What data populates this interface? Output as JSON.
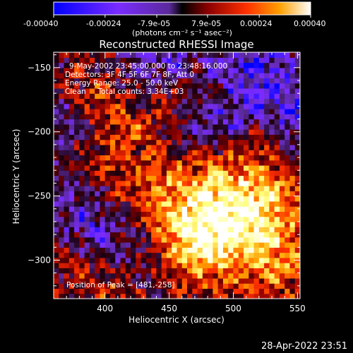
{
  "colorbar": {
    "tick_labels": [
      "-0.00040",
      "-0.00024",
      "-7.9e-05",
      "7.9e-05",
      "0.00024",
      "0.00040"
    ],
    "unit_label": "(photons cm⁻² s⁻¹ asec⁻²)",
    "range": [
      -0.0004,
      0.0004
    ]
  },
  "annotations": {
    "time_range": "9-May-2002 23:45:00.000 to 23:48:16.000",
    "detectors": "Detectors: 3F 4F 5F 6F 7F 8F, Att 0",
    "energy_range": "Energy Range: 25.0 - 50.0 keV",
    "clean_counts": "Clean     Total counts: 3.34E+03",
    "peak_position": "Position of Peak = [481,-258]"
  },
  "footer": {
    "timestamp": "28-Apr-2022 23:51"
  },
  "chart_data": {
    "type": "heatmap",
    "title": "Reconstructed RHESSI Image",
    "xlabel": "Heliocentric X (arcsec)",
    "ylabel": "Heliocentric Y (arcsec)",
    "xlim": [
      360,
      552
    ],
    "ylim": [
      -330,
      -138
    ],
    "x_ticks": [
      400,
      450,
      500,
      550
    ],
    "y_ticks": [
      -150,
      -200,
      -250,
      -300
    ],
    "x_tick_labels": [
      "400",
      "450",
      "500",
      "550"
    ],
    "y_tick_labels": [
      "-150",
      "-200",
      "-250",
      "-300"
    ],
    "peak": [
      481,
      -258
    ],
    "colormap": [
      "#0000ff",
      "#7a2cff",
      "#5b2a9a",
      "#1a0010",
      "#8b0000",
      "#ff3000",
      "#ffa000",
      "#ffff80",
      "#ffffff"
    ],
    "grid": false,
    "features": [
      {
        "x": 481,
        "y": -258,
        "amp": 1.0,
        "sigma": 30
      },
      {
        "x": 500,
        "y": -280,
        "amp": 0.8,
        "sigma": 28
      },
      {
        "x": 530,
        "y": -250,
        "amp": 0.7,
        "sigma": 25
      },
      {
        "x": 460,
        "y": -290,
        "amp": 0.6,
        "sigma": 22
      },
      {
        "x": 395,
        "y": -230,
        "amp": 0.55,
        "sigma": 20
      },
      {
        "x": 420,
        "y": -200,
        "amp": 0.45,
        "sigma": 15
      },
      {
        "x": 390,
        "y": -170,
        "amp": 0.45,
        "sigma": 15
      },
      {
        "x": 450,
        "y": -170,
        "amp": 0.4,
        "sigma": 14
      },
      {
        "x": 520,
        "y": -200,
        "amp": 0.35,
        "sigma": 14
      },
      {
        "x": 380,
        "y": -300,
        "amp": 0.3,
        "sigma": 14
      },
      {
        "x": 410,
        "y": -320,
        "amp": 0.45,
        "sigma": 16
      },
      {
        "x": 440,
        "y": -240,
        "amp": 0.4,
        "sigma": 14
      },
      {
        "x": 540,
        "y": -300,
        "amp": 0.55,
        "sigma": 18
      },
      {
        "x": 445,
        "y": -145,
        "amp": -0.7,
        "sigma": 20
      },
      {
        "x": 515,
        "y": -150,
        "amp": -0.8,
        "sigma": 24
      },
      {
        "x": 545,
        "y": -190,
        "amp": -0.75,
        "sigma": 22
      },
      {
        "x": 375,
        "y": -245,
        "amp": -0.6,
        "sigma": 22
      },
      {
        "x": 430,
        "y": -300,
        "amp": -0.5,
        "sigma": 18
      },
      {
        "x": 395,
        "y": -280,
        "amp": -0.55,
        "sigma": 18
      },
      {
        "x": 500,
        "y": -195,
        "amp": -0.45,
        "sigma": 15
      },
      {
        "x": 470,
        "y": -200,
        "amp": -0.45,
        "sigma": 14
      },
      {
        "x": 365,
        "y": -190,
        "amp": -0.5,
        "sigma": 16
      }
    ]
  }
}
